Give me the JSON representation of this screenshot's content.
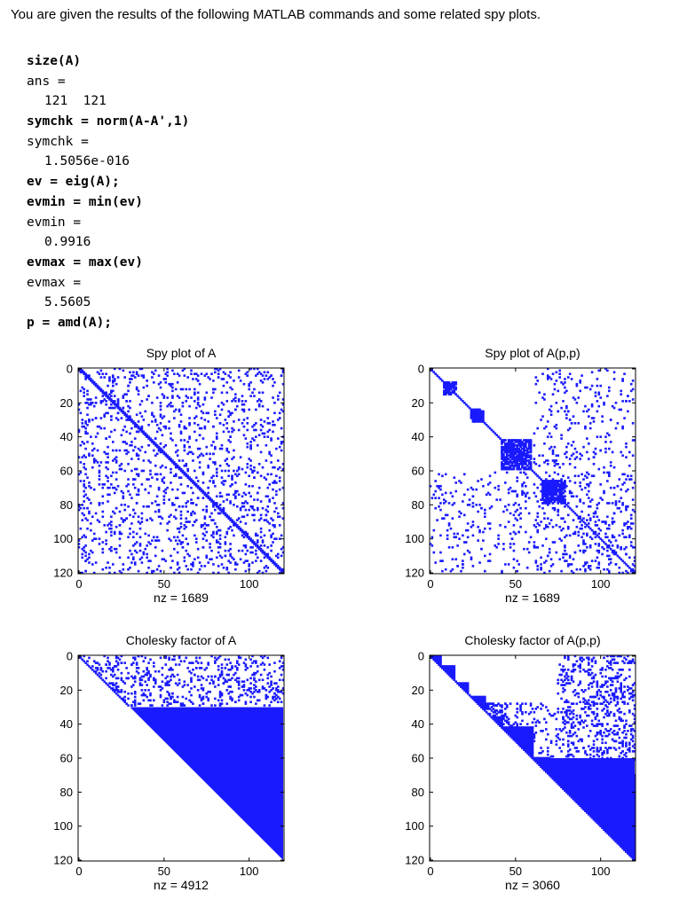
{
  "intro": "You are given the results of the following MATLAB commands and some related spy plots.",
  "code_lines": [
    {
      "kind": "input",
      "text": "size(A)"
    },
    {
      "kind": "label",
      "text": "ans ="
    },
    {
      "kind": "value",
      "text": "121  121"
    },
    {
      "kind": "input",
      "text": "symchk = norm(A-A',1)"
    },
    {
      "kind": "label",
      "text": "symchk ="
    },
    {
      "kind": "value",
      "text": "1.5056e-016"
    },
    {
      "kind": "input",
      "text": "ev = eig(A);"
    },
    {
      "kind": "input",
      "text": "evmin = min(ev)"
    },
    {
      "kind": "label",
      "text": "evmin ="
    },
    {
      "kind": "value",
      "text": "0.9916"
    },
    {
      "kind": "input",
      "text": "evmax = max(ev)"
    },
    {
      "kind": "label",
      "text": "evmax ="
    },
    {
      "kind": "value",
      "text": "5.5605"
    },
    {
      "kind": "input",
      "text": "p = amd(A);"
    }
  ],
  "plots": [
    {
      "title": "Spy plot of A",
      "nz_label": "nz = 1689",
      "style": "spy_random",
      "n": 121,
      "xticks": [
        "0",
        "50",
        "100"
      ],
      "yticks": [
        "0",
        "20",
        "40",
        "60",
        "80",
        "100",
        "120"
      ]
    },
    {
      "title": "Spy plot of A(p,p)",
      "nz_label": "nz = 1689",
      "style": "spy_permuted",
      "n": 121,
      "xticks": [
        "0",
        "50",
        "100"
      ],
      "yticks": [
        "0",
        "20",
        "40",
        "60",
        "80",
        "100",
        "120"
      ]
    },
    {
      "title": "Cholesky factor of A",
      "nz_label": "nz = 4912",
      "style": "chol_dense",
      "n": 121,
      "xticks": [
        "0",
        "50",
        "100"
      ],
      "yticks": [
        "0",
        "20",
        "40",
        "60",
        "80",
        "100",
        "120"
      ]
    },
    {
      "title": "Cholesky factor of A(p,p)",
      "nz_label": "nz = 3060",
      "style": "chol_sparse",
      "n": 121,
      "xticks": [
        "0",
        "50",
        "100"
      ],
      "yticks": [
        "0",
        "20",
        "40",
        "60",
        "80",
        "100",
        "120"
      ]
    }
  ],
  "colors": {
    "marker": "#1a1aff",
    "axis": "#000000"
  }
}
